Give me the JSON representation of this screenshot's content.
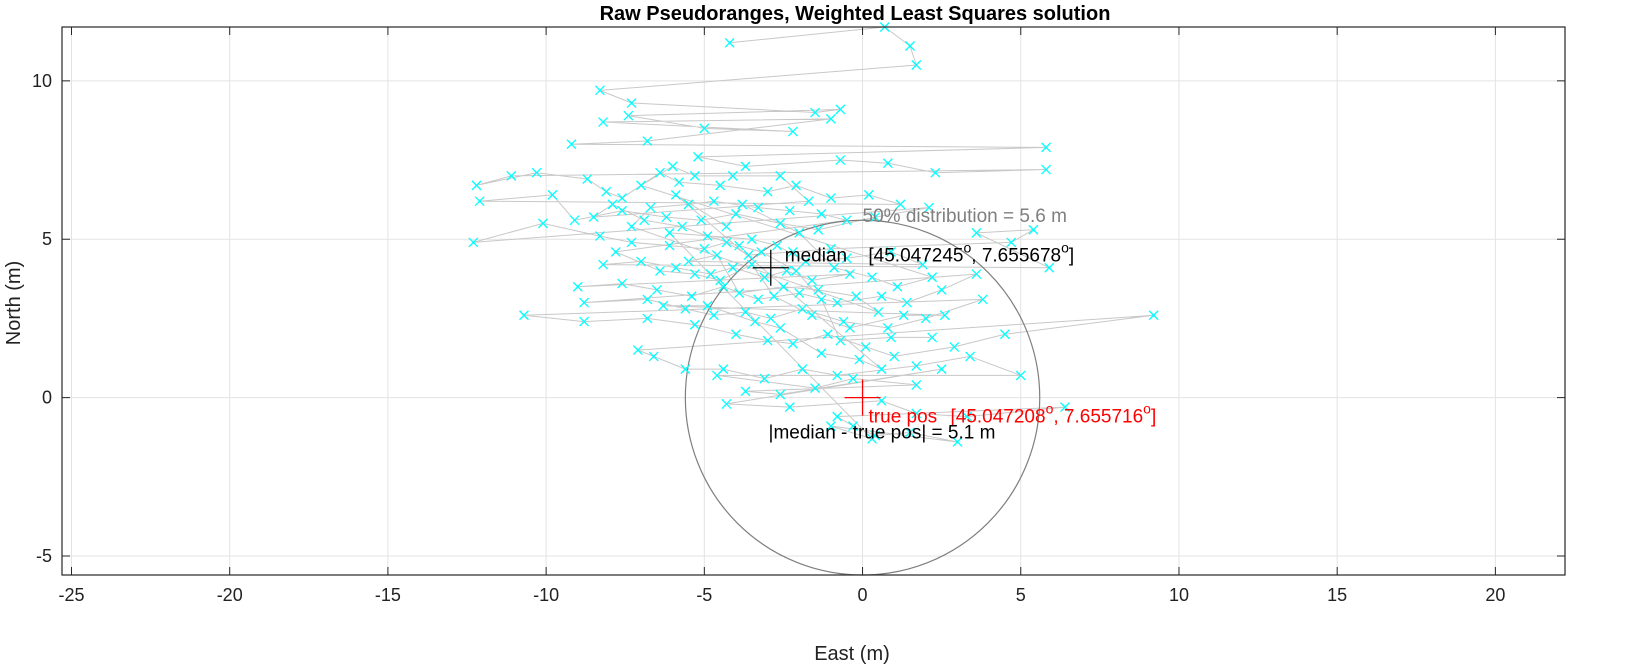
{
  "chart_data": {
    "type": "scatter",
    "title": "Raw Pseudoranges, Weighted Least Squares solution",
    "xlabel": "East (m)",
    "ylabel": "North (m)",
    "xlim": [
      -25.3,
      22.2
    ],
    "ylim": [
      -5.6,
      11.7
    ],
    "xticks": [
      -25,
      -20,
      -15,
      -10,
      -5,
      0,
      5,
      10,
      15,
      20
    ],
    "yticks": [
      -5,
      0,
      5,
      10
    ],
    "grid": true,
    "colors": {
      "points": "#00ffff",
      "path": "#c8c8c8",
      "median": "#000000",
      "truth": "#ff0000",
      "circle": "#7f7f7f"
    },
    "markers": {
      "median": {
        "x": -2.9,
        "y": 4.1
      },
      "true_pos": {
        "x": 0.0,
        "y": 0.0
      }
    },
    "circle": {
      "center": [
        0.0,
        0.0
      ],
      "radius": 5.6,
      "label": "50% distribution = 5.6 m"
    },
    "annotations": {
      "median_text": "median",
      "median_coords": "[45.047245",
      "median_coords_2": ", 7.655678",
      "degree_symbol": "o",
      "close_bracket": "]",
      "true_pos_text": "true pos",
      "true_pos_coords": "[45.047208",
      "true_pos_coords_2": ", 7.655716",
      "diff_text": "|median - true pos| = 5.1 m"
    },
    "points": [
      [
        -4.2,
        11.2
      ],
      [
        0.7,
        11.7
      ],
      [
        1.5,
        11.1
      ],
      [
        1.7,
        10.5
      ],
      [
        -8.3,
        9.7
      ],
      [
        -7.3,
        9.3
      ],
      [
        -1.5,
        9.0
      ],
      [
        -0.7,
        9.1
      ],
      [
        -7.4,
        8.9
      ],
      [
        -5.0,
        8.5
      ],
      [
        -2.2,
        8.4
      ],
      [
        -8.2,
        8.7
      ],
      [
        -1.0,
        8.8
      ],
      [
        -6.8,
        8.1
      ],
      [
        -9.2,
        8.0
      ],
      [
        5.8,
        7.9
      ],
      [
        -5.2,
        7.6
      ],
      [
        -3.7,
        7.3
      ],
      [
        -0.7,
        7.5
      ],
      [
        0.8,
        7.4
      ],
      [
        2.3,
        7.1
      ],
      [
        5.8,
        7.2
      ],
      [
        -11.1,
        7.0
      ],
      [
        -12.2,
        6.7
      ],
      [
        -10.3,
        7.1
      ],
      [
        -8.7,
        6.9
      ],
      [
        -8.1,
        6.5
      ],
      [
        -7.6,
        6.3
      ],
      [
        -6.4,
        7.1
      ],
      [
        -5.8,
        6.8
      ],
      [
        -4.5,
        6.7
      ],
      [
        -3.0,
        6.5
      ],
      [
        -2.1,
        6.7
      ],
      [
        -1.0,
        6.3
      ],
      [
        0.2,
        6.4
      ],
      [
        1.2,
        6.1
      ],
      [
        -12.1,
        6.2
      ],
      [
        -9.8,
        6.4
      ],
      [
        -9.1,
        5.6
      ],
      [
        -7.6,
        5.9
      ],
      [
        -6.2,
        5.7
      ],
      [
        -5.1,
        5.6
      ],
      [
        -4.0,
        5.8
      ],
      [
        -2.6,
        5.5
      ],
      [
        -1.4,
        5.3
      ],
      [
        0.4,
        5.7
      ],
      [
        2.1,
        6.0
      ],
      [
        -12.3,
        4.9
      ],
      [
        -10.1,
        5.5
      ],
      [
        -8.3,
        5.1
      ],
      [
        -7.3,
        4.9
      ],
      [
        -6.1,
        4.8
      ],
      [
        -5.0,
        4.7
      ],
      [
        -4.3,
        4.9
      ],
      [
        -3.6,
        4.5
      ],
      [
        -2.2,
        4.6
      ],
      [
        -1.0,
        4.7
      ],
      [
        4.7,
        4.9
      ],
      [
        5.4,
        5.3
      ],
      [
        3.6,
        5.2
      ],
      [
        5.9,
        4.1
      ],
      [
        -8.2,
        4.2
      ],
      [
        -7.0,
        4.3
      ],
      [
        -5.9,
        4.1
      ],
      [
        -4.8,
        3.9
      ],
      [
        -4.1,
        4.1
      ],
      [
        -3.1,
        3.8
      ],
      [
        -2.4,
        4.0
      ],
      [
        -1.6,
        3.7
      ],
      [
        -0.4,
        3.9
      ],
      [
        -9.0,
        3.5
      ],
      [
        -7.6,
        3.6
      ],
      [
        -6.5,
        3.4
      ],
      [
        -5.4,
        3.2
      ],
      [
        -4.4,
        3.5
      ],
      [
        -3.3,
        3.1
      ],
      [
        -2.0,
        3.3
      ],
      [
        -0.8,
        3.0
      ],
      [
        0.6,
        3.2
      ],
      [
        1.4,
        3.0
      ],
      [
        2.5,
        3.4
      ],
      [
        3.6,
        3.9
      ],
      [
        -8.8,
        3.0
      ],
      [
        -6.8,
        3.1
      ],
      [
        -5.6,
        2.8
      ],
      [
        -4.7,
        2.6
      ],
      [
        -3.7,
        2.7
      ],
      [
        -2.9,
        2.5
      ],
      [
        -1.9,
        2.8
      ],
      [
        -0.6,
        2.4
      ],
      [
        0.8,
        2.2
      ],
      [
        2.0,
        2.5
      ],
      [
        3.8,
        3.1
      ],
      [
        -10.7,
        2.6
      ],
      [
        -8.8,
        2.4
      ],
      [
        -6.8,
        2.5
      ],
      [
        -5.3,
        2.3
      ],
      [
        -4.0,
        2.0
      ],
      [
        -3.0,
        1.8
      ],
      [
        -2.2,
        1.7
      ],
      [
        -1.1,
        2.0
      ],
      [
        0.1,
        1.6
      ],
      [
        1.0,
        1.3
      ],
      [
        2.9,
        1.6
      ],
      [
        4.5,
        2.0
      ],
      [
        9.2,
        2.6
      ],
      [
        -7.1,
        1.5
      ],
      [
        -6.6,
        1.3
      ],
      [
        -5.6,
        0.9
      ],
      [
        -4.4,
        0.9
      ],
      [
        -3.1,
        0.6
      ],
      [
        -1.9,
        0.9
      ],
      [
        -0.8,
        0.7
      ],
      [
        1.7,
        1.0
      ],
      [
        3.4,
        1.3
      ],
      [
        5.0,
        0.7
      ],
      [
        -4.6,
        0.7
      ],
      [
        -1.5,
        0.3
      ],
      [
        -0.3,
        0.6
      ],
      [
        1.7,
        0.4
      ],
      [
        -3.7,
        0.2
      ],
      [
        -2.6,
        0.1
      ],
      [
        2.5,
        0.9
      ],
      [
        -4.3,
        -0.2
      ],
      [
        -2.3,
        -0.3
      ],
      [
        0.6,
        -0.1
      ],
      [
        1.7,
        -0.5
      ],
      [
        3.3,
        -0.6
      ],
      [
        6.4,
        -0.3
      ],
      [
        -0.8,
        -0.6
      ],
      [
        -0.3,
        -0.9
      ],
      [
        0.4,
        -1.2
      ],
      [
        1.5,
        -1.1
      ],
      [
        3.0,
        -1.4
      ],
      [
        -1.0,
        -0.9
      ],
      [
        0.3,
        -1.3
      ],
      [
        -6.1,
        5.2
      ],
      [
        -3.5,
        5.0
      ],
      [
        -2.7,
        4.8
      ],
      [
        -1.8,
        4.3
      ],
      [
        -0.5,
        4.4
      ],
      [
        0.9,
        4.6
      ],
      [
        1.9,
        4.2
      ],
      [
        -5.5,
        4.3
      ],
      [
        -4.6,
        4.5
      ],
      [
        -3.9,
        3.3
      ],
      [
        -2.5,
        3.5
      ],
      [
        -1.4,
        3.4
      ],
      [
        -0.2,
        3.2
      ],
      [
        0.5,
        2.7
      ],
      [
        -7.3,
        5.4
      ],
      [
        -6.7,
        6.0
      ],
      [
        -5.5,
        6.1
      ],
      [
        -4.7,
        6.2
      ],
      [
        -3.3,
        6.0
      ],
      [
        -2.3,
        5.9
      ],
      [
        -1.3,
        5.8
      ],
      [
        -0.5,
        5.6
      ],
      [
        -7.8,
        4.6
      ],
      [
        -6.4,
        4.0
      ],
      [
        -5.3,
        3.9
      ],
      [
        -4.5,
        3.7
      ],
      [
        -3.5,
        4.2
      ],
      [
        -2.8,
        3.2
      ],
      [
        -1.6,
        2.6
      ],
      [
        -0.4,
        2.2
      ],
      [
        1.3,
        2.6
      ],
      [
        2.6,
        2.6
      ],
      [
        -6.3,
        2.9
      ],
      [
        -4.9,
        2.9
      ],
      [
        -3.4,
        2.4
      ],
      [
        -2.6,
        2.2
      ],
      [
        -1.3,
        1.4
      ],
      [
        -0.1,
        1.2
      ],
      [
        0.6,
        0.9
      ],
      [
        -5.9,
        6.4
      ],
      [
        -4.3,
        5.4
      ],
      [
        -3.8,
        6.1
      ],
      [
        -2.0,
        5.2
      ],
      [
        -0.9,
        4.1
      ],
      [
        0.3,
        3.8
      ],
      [
        1.1,
        3.5
      ],
      [
        2.2,
        3.8
      ],
      [
        -7.0,
        6.7
      ],
      [
        -6.0,
        7.3
      ],
      [
        -5.3,
        7.0
      ],
      [
        -4.1,
        7.0
      ],
      [
        -2.6,
        7.0
      ],
      [
        -1.7,
        6.2
      ],
      [
        -8.5,
        5.7
      ],
      [
        -7.9,
        6.1
      ],
      [
        -6.9,
        5.6
      ],
      [
        -5.7,
        5.4
      ],
      [
        -4.9,
        5.1
      ],
      [
        -3.9,
        4.8
      ],
      [
        -3.2,
        4.6
      ],
      [
        -2.1,
        4.0
      ],
      [
        -1.3,
        3.1
      ],
      [
        -0.7,
        1.8
      ],
      [
        0.9,
        1.9
      ],
      [
        2.2,
        1.9
      ]
    ]
  }
}
